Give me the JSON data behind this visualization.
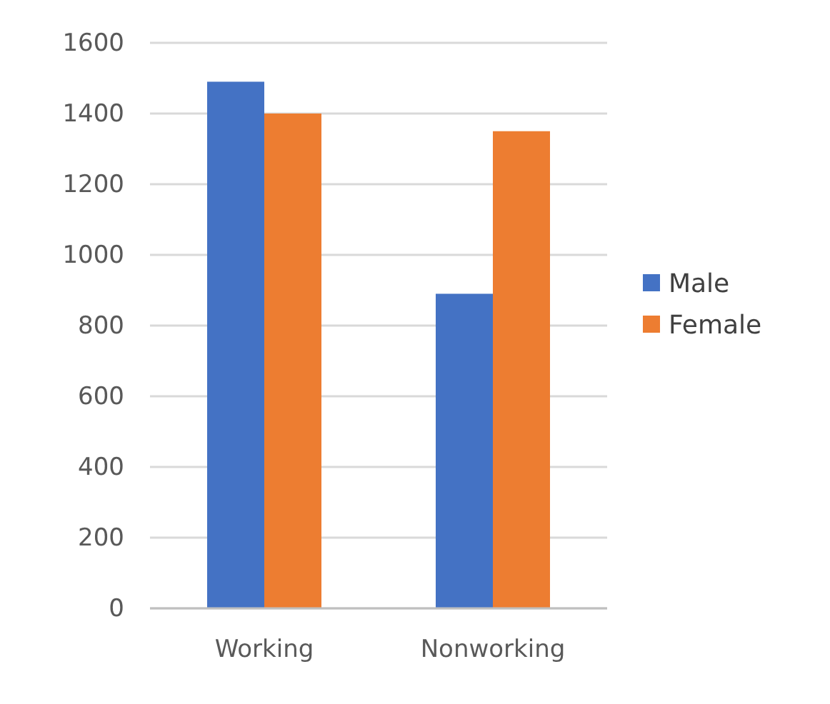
{
  "chart_data": {
    "type": "bar",
    "categories": [
      "Working",
      "Nonworking"
    ],
    "series": [
      {
        "name": "Male",
        "color": "#4472c4",
        "values": [
          1490,
          890
        ]
      },
      {
        "name": "Female",
        "color": "#ed7d31",
        "values": [
          1400,
          1350
        ]
      }
    ],
    "ylim": [
      0,
      1600
    ],
    "yticks": [
      0,
      200,
      400,
      600,
      800,
      1000,
      1200,
      1400,
      1600
    ],
    "grid": "y",
    "legend": "right"
  }
}
